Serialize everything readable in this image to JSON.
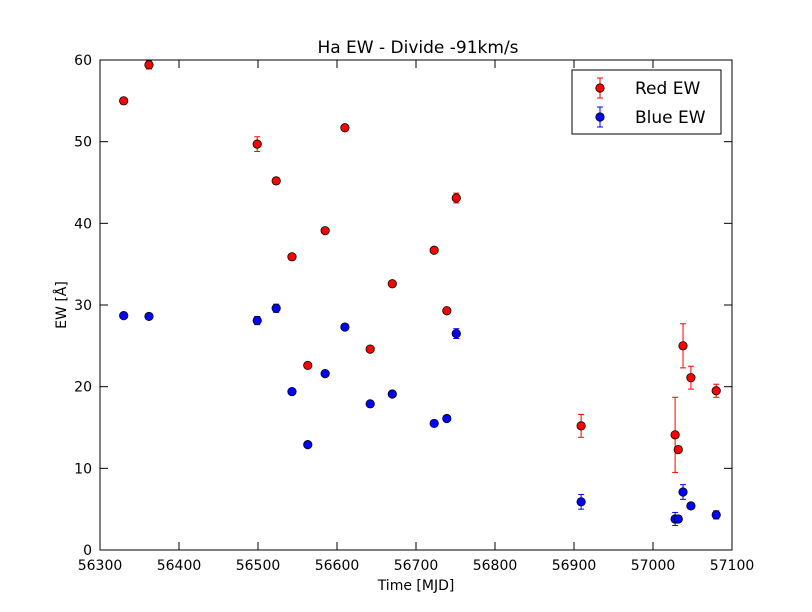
{
  "chart_data": {
    "type": "scatter",
    "title": "Ha  EW - Divide -91km/s",
    "xlabel": "Time [MJD]",
    "ylabel": "EW [Å]",
    "xlim": [
      56300,
      57100
    ],
    "ylim": [
      0,
      60
    ],
    "x_ticks": [
      56300,
      56400,
      56500,
      56600,
      56700,
      56800,
      56900,
      57000,
      57100
    ],
    "y_ticks": [
      0,
      10,
      20,
      30,
      40,
      50,
      60
    ],
    "grid": false,
    "legend_position": "top-right",
    "series": [
      {
        "name": "Red EW",
        "color": "#ff0000",
        "points": [
          {
            "x": 56330,
            "y": 55.0,
            "err": 0.3
          },
          {
            "x": 56362,
            "y": 59.4,
            "err": 0.5
          },
          {
            "x": 56499,
            "y": 49.7,
            "err": 0.9
          },
          {
            "x": 56523,
            "y": 45.2,
            "err": 0.4
          },
          {
            "x": 56543,
            "y": 35.9,
            "err": 0.3
          },
          {
            "x": 56563,
            "y": 22.6,
            "err": 0.3
          },
          {
            "x": 56585,
            "y": 39.1,
            "err": 0.3
          },
          {
            "x": 56610,
            "y": 51.7,
            "err": 0.3
          },
          {
            "x": 56642,
            "y": 24.6,
            "err": 0.3
          },
          {
            "x": 56670,
            "y": 32.6,
            "err": 0.3
          },
          {
            "x": 56723,
            "y": 36.7,
            "err": 0.3
          },
          {
            "x": 56739,
            "y": 29.3,
            "err": 0.3
          },
          {
            "x": 56751,
            "y": 43.1,
            "err": 0.6
          },
          {
            "x": 56909,
            "y": 15.2,
            "err": 1.4
          },
          {
            "x": 57028,
            "y": 14.1,
            "err": 4.6
          },
          {
            "x": 57032,
            "y": 12.3,
            "err": 0.4
          },
          {
            "x": 57038,
            "y": 25.0,
            "err": 2.7
          },
          {
            "x": 57048,
            "y": 21.1,
            "err": 1.4
          },
          {
            "x": 57080,
            "y": 19.5,
            "err": 0.8
          }
        ]
      },
      {
        "name": "Blue EW",
        "color": "#0000ff",
        "points": [
          {
            "x": 56330,
            "y": 28.7,
            "err": 0.3
          },
          {
            "x": 56362,
            "y": 28.6,
            "err": 0.3
          },
          {
            "x": 56499,
            "y": 28.1,
            "err": 0.5
          },
          {
            "x": 56523,
            "y": 29.6,
            "err": 0.5
          },
          {
            "x": 56543,
            "y": 19.4,
            "err": 0.3
          },
          {
            "x": 56563,
            "y": 12.9,
            "err": 0.3
          },
          {
            "x": 56585,
            "y": 21.6,
            "err": 0.3
          },
          {
            "x": 56610,
            "y": 27.3,
            "err": 0.3
          },
          {
            "x": 56642,
            "y": 17.9,
            "err": 0.3
          },
          {
            "x": 56670,
            "y": 19.1,
            "err": 0.3
          },
          {
            "x": 56723,
            "y": 15.5,
            "err": 0.3
          },
          {
            "x": 56739,
            "y": 16.1,
            "err": 0.3
          },
          {
            "x": 56751,
            "y": 26.5,
            "err": 0.6
          },
          {
            "x": 56909,
            "y": 5.9,
            "err": 0.9
          },
          {
            "x": 57028,
            "y": 3.8,
            "err": 0.8
          },
          {
            "x": 57032,
            "y": 3.8,
            "err": 0.4
          },
          {
            "x": 57038,
            "y": 7.1,
            "err": 0.9
          },
          {
            "x": 57048,
            "y": 5.4,
            "err": 0.3
          },
          {
            "x": 57080,
            "y": 4.3,
            "err": 0.5
          }
        ]
      }
    ]
  }
}
